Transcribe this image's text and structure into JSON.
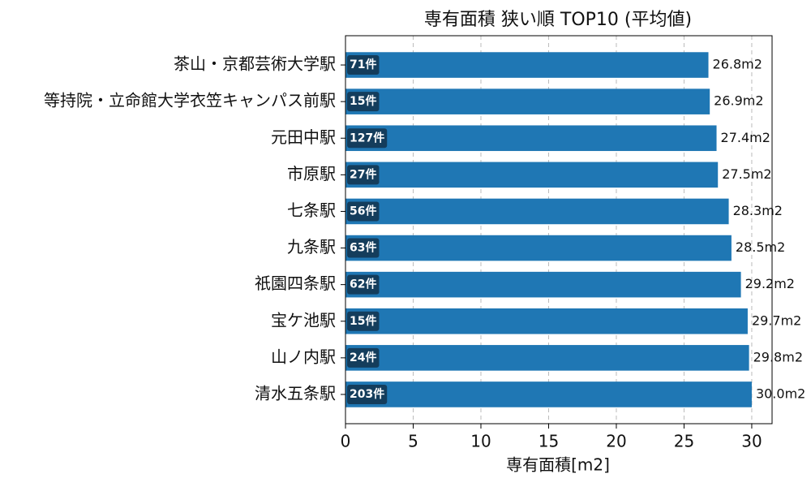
{
  "chart_data": {
    "type": "barh",
    "title": "専有面積 狭い順 TOP10 (平均値)",
    "x_label": "専有面積[m2]",
    "categories": [
      "茶山・京都芸術大学駅",
      "等持院・立命館大学衣笠キャンパス前駅",
      "元田中駅",
      "市原駅",
      "七条駅",
      "九条駅",
      "祇園四条駅",
      "宝ケ池駅",
      "山ノ内駅",
      "清水五条駅"
    ],
    "values": [
      26.8,
      26.9,
      27.4,
      27.5,
      28.3,
      28.5,
      29.2,
      29.7,
      29.8,
      30.0
    ],
    "value_labels": [
      "26.8m2",
      "26.9m2",
      "27.4m2",
      "27.5m2",
      "28.3m2",
      "28.5m2",
      "29.2m2",
      "29.7m2",
      "29.8m2",
      "30.0m2"
    ],
    "bar_annotations": [
      "71件",
      "15件",
      "127件",
      "27件",
      "56件",
      "63件",
      "62件",
      "15件",
      "24件",
      "203件"
    ],
    "color": "#1f77b4",
    "annotation_color": "#143d5c",
    "xlim": [
      0,
      31.5
    ],
    "xticks": [
      0,
      5,
      10,
      15,
      20,
      25,
      30
    ],
    "grid": true
  }
}
